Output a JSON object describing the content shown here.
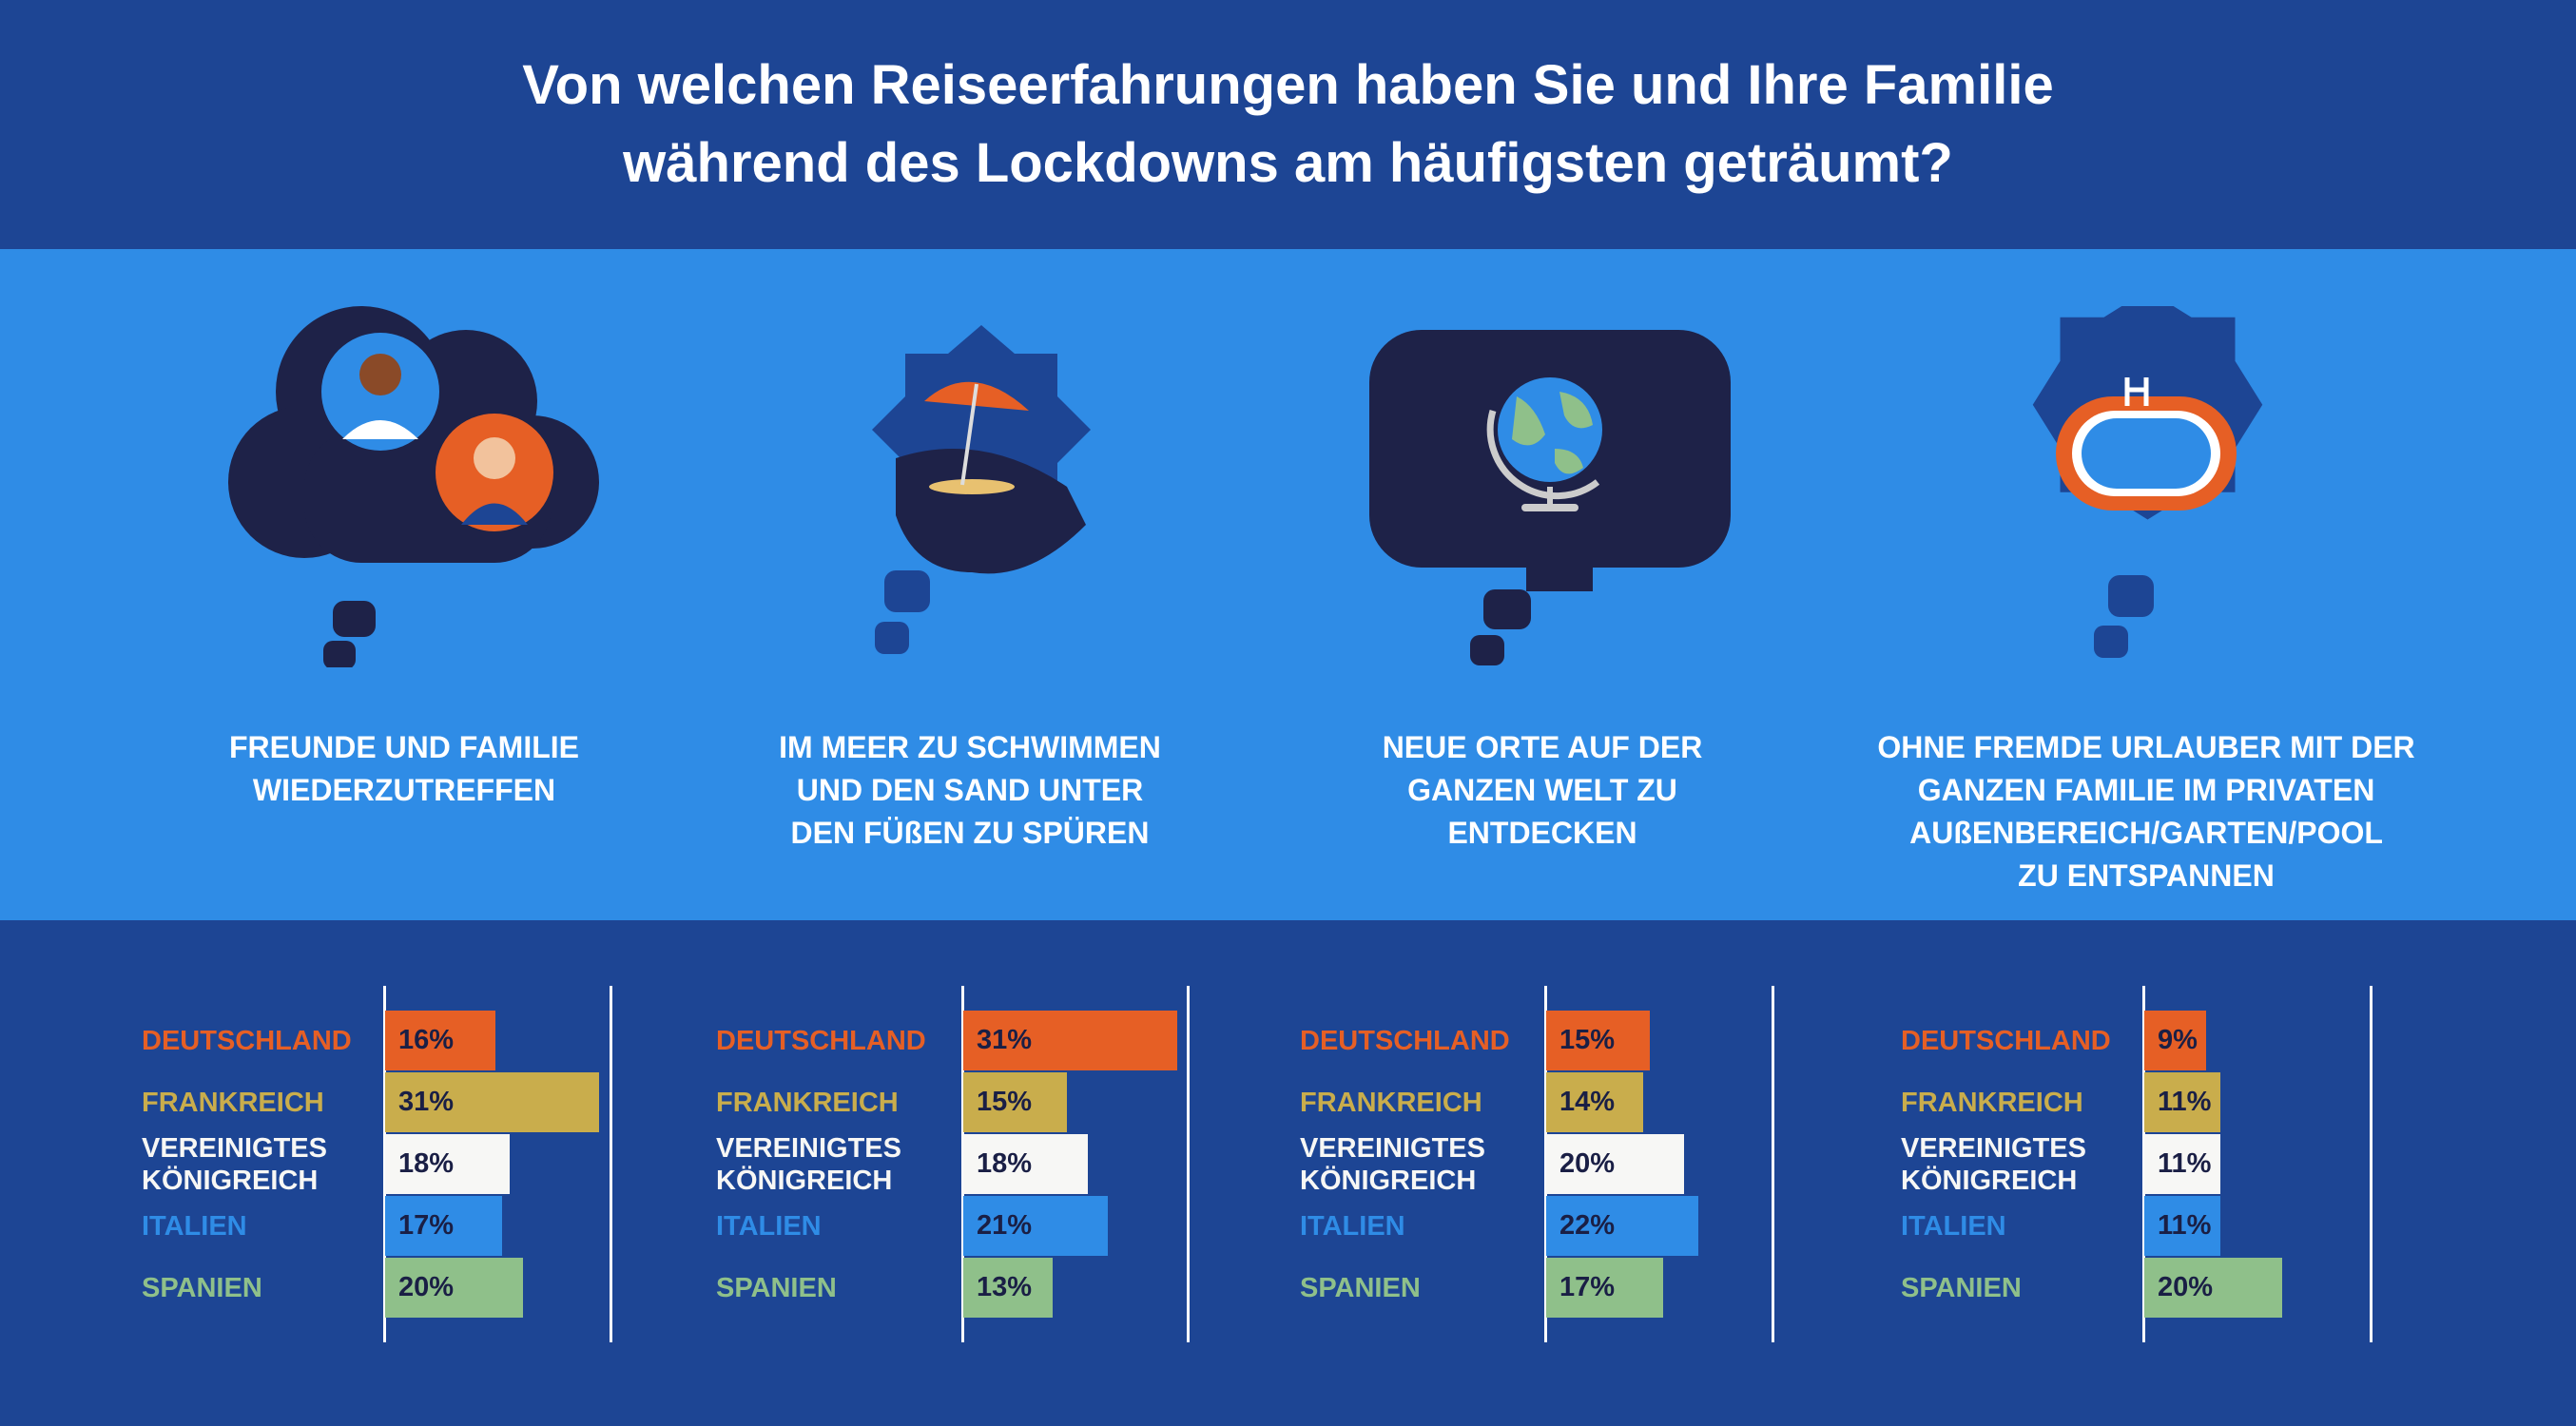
{
  "title": {
    "line1": "Von welchen Reiseerfahrungen haben Sie und Ihre Familie",
    "line2": "während des Lockdowns am häufigsten geträumt?"
  },
  "colors": {
    "Deutschland": "#e65f25",
    "Frankreich": "#c9ad4c",
    "Vereinigtes Königreich": "#f7f7f5",
    "Italien": "#2f8ce6",
    "Spanien": "#8fc08a"
  },
  "chart_data": {
    "type": "bar",
    "title": "Von welchen Reiseerfahrungen haben Sie und Ihre Familie während des Lockdowns am häufigsten geträumt?",
    "countries": [
      {
        "label_lines": [
          "DEUTSCHLAND"
        ],
        "key": "Deutschland"
      },
      {
        "label_lines": [
          "FRANKREICH"
        ],
        "key": "Frankreich"
      },
      {
        "label_lines": [
          "VEREINIGTES",
          "KÖNIGREICH"
        ],
        "key": "Vereinigtes Königreich"
      },
      {
        "label_lines": [
          "ITALIEN"
        ],
        "key": "Italien"
      },
      {
        "label_lines": [
          "SPANIEN"
        ],
        "key": "Spanien"
      }
    ],
    "unit": "%",
    "categories": [
      {
        "icon": "friends-family-thought-bubble-icon",
        "label_lines": [
          "FREUNDE UND FAMILIE",
          "WIEDERZUTREFFEN"
        ],
        "values": [
          16,
          31,
          18,
          17,
          20
        ]
      },
      {
        "icon": "beach-umbrella-thought-bubble-icon",
        "label_lines": [
          "IM MEER ZU SCHWIMMEN",
          "UND DEN SAND UNTER",
          "DEN FÜßEN ZU SPÜREN"
        ],
        "values": [
          31,
          15,
          18,
          21,
          13
        ]
      },
      {
        "icon": "globe-thought-bubble-icon",
        "label_lines": [
          "NEUE ORTE AUF DER",
          "GANZEN WELT ZU",
          "ENTDECKEN"
        ],
        "values": [
          15,
          14,
          20,
          22,
          17
        ]
      },
      {
        "icon": "pool-thought-bubble-icon",
        "label_lines": [
          "OHNE FREMDE URLAUBER MIT DER",
          "GANZEN FAMILIE IM PRIVATEN",
          "AUßENBEREICH/GARTEN/POOL",
          "ZU ENTSPANNEN"
        ],
        "values": [
          9,
          11,
          11,
          11,
          20
        ]
      }
    ]
  }
}
